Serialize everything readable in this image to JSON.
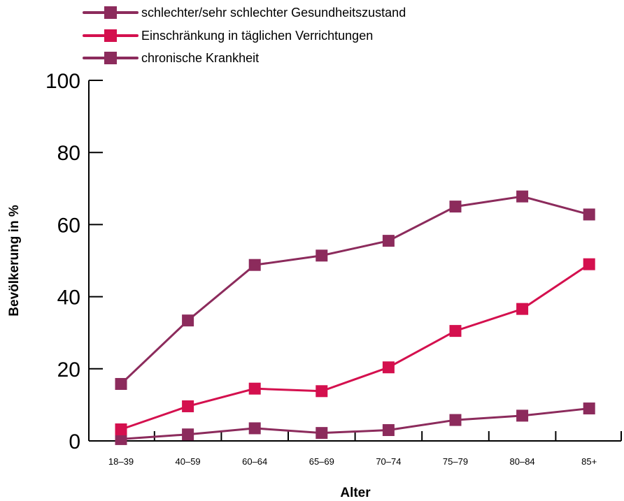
{
  "chart_data": {
    "type": "line",
    "categories": [
      "18–39",
      "40–59",
      "60–64",
      "65–69",
      "70–74",
      "75–79",
      "80–84",
      "85+"
    ],
    "series": [
      {
        "name": "schlechter/sehr schlechter Gesundheitszustand",
        "color": "#8c2b5c",
        "values": [
          0.5,
          1.8,
          3.5,
          2.2,
          3.0,
          5.8,
          7.0,
          9.0
        ]
      },
      {
        "name": "Einschränkung in täglichen Verrichtungen",
        "color": "#d4104e",
        "values": [
          3.2,
          9.6,
          14.5,
          13.8,
          20.4,
          30.5,
          36.6,
          49.0
        ]
      },
      {
        "name": "chronische Krankheit",
        "color": "#8c2b5c",
        "values": [
          15.8,
          33.4,
          48.8,
          51.4,
          55.5,
          65.0,
          67.8,
          62.8
        ]
      }
    ],
    "y_ticks": [
      "0",
      "20",
      "40",
      "60",
      "80",
      "100"
    ],
    "ylim": [
      0,
      100
    ],
    "xlabel": "Alter",
    "ylabel": "Bevölkerung in %",
    "grid": false,
    "legend": "top-left"
  }
}
